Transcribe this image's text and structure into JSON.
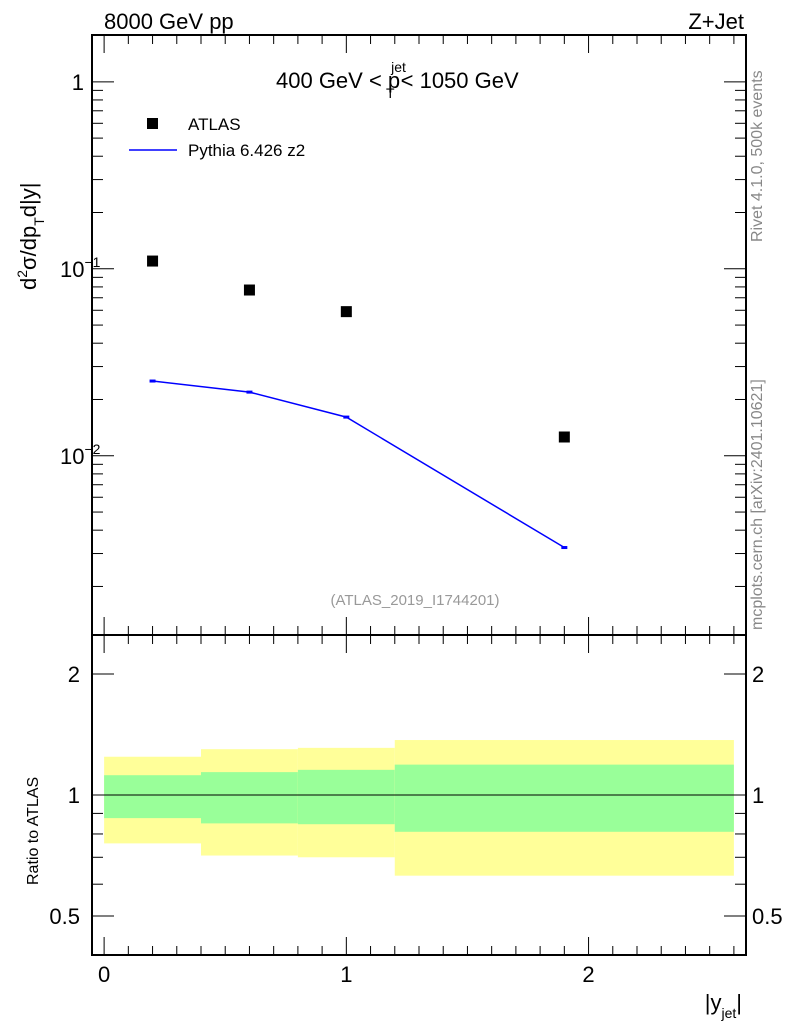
{
  "chart_data": {
    "type": "scatter",
    "header_left": "8000 GeV pp",
    "header_right": "Z+Jet",
    "title_parts": {
      "pre": "400 GeV < p",
      "sup": "jet",
      "sub": "T",
      "post": " < 1050 GeV"
    },
    "ylabel": {
      "a": "d",
      "a_sup": "2",
      "b": "σ/dp",
      "b_sub": "T",
      "c": "d|y|"
    },
    "xlabel": {
      "a": "|y",
      "a_sub": "jet",
      "b": "|"
    },
    "analysis_label": "(ATLAS_2019_I1744201)",
    "side_label_top": "Rivet 4.1.0,  500k events",
    "side_label_bottom": "mcplots.cern.ch [arXiv:2401.10621]",
    "xlim": [
      -0.05,
      2.65
    ],
    "ylim": [
      0.0011,
      1.78
    ],
    "yscale": "log",
    "x_ticks": [
      "0",
      "1",
      "2"
    ],
    "y_ticks": [
      {
        "value": 1,
        "label": "1"
      },
      {
        "value": 0.1,
        "label": "10",
        "sup": "−1"
      },
      {
        "value": 0.01,
        "label": "10",
        "sup": "−2"
      }
    ],
    "legend": {
      "placement": "top-left",
      "entries": [
        "ATLAS",
        "Pythia 6.426 z2"
      ]
    },
    "series": [
      {
        "name": "ATLAS",
        "color": "#000000",
        "marker": "square",
        "x": [
          0.2,
          0.6,
          1.0,
          1.9
        ],
        "y": [
          0.11,
          0.077,
          0.059,
          0.0126
        ]
      },
      {
        "name": "Pythia 6.426 z2",
        "color": "#0000ff",
        "marker": "line",
        "x": [
          0.2,
          0.6,
          1.0,
          1.9
        ],
        "y": [
          0.0251,
          0.0219,
          0.0161,
          0.00323
        ]
      }
    ],
    "ratio": {
      "ylabel": "Ratio to ATLAS",
      "ylim": [
        0.4,
        2.5
      ],
      "yscale": "log",
      "y_ticks": [
        {
          "value": 0.5,
          "label": "0.5"
        },
        {
          "value": 1,
          "label": "1"
        },
        {
          "value": 2,
          "label": "2"
        }
      ],
      "bins": [
        [
          0,
          0.4
        ],
        [
          0.4,
          0.8
        ],
        [
          0.8,
          1.2
        ],
        [
          1.2,
          2.6
        ]
      ],
      "outer_band": {
        "color": "#ffff99",
        "low": [
          0.758,
          0.707,
          0.7,
          0.63
        ],
        "high": [
          1.245,
          1.3,
          1.31,
          1.37
        ]
      },
      "inner_band": {
        "color": "#99ff99",
        "low": [
          0.876,
          0.85,
          0.846,
          0.81
        ],
        "high": [
          1.12,
          1.14,
          1.155,
          1.19
        ]
      }
    }
  }
}
